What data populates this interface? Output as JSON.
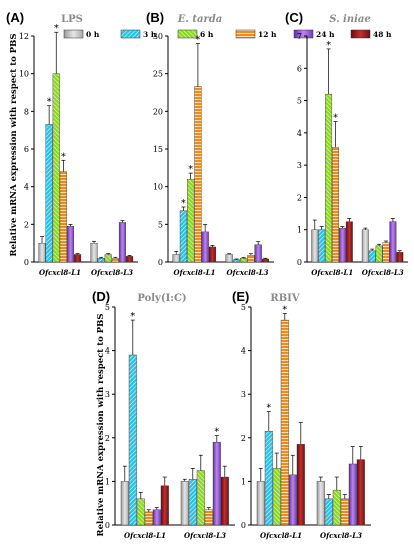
{
  "colors": {
    "0 h": "#bfbfbf",
    "3 h": "#31c3e6",
    "6 h": "#8fd82a",
    "12 h": "#f08a1c",
    "24 h": "#8e3fd8",
    "48 h": "#8b1010"
  },
  "legend": [
    "0 h",
    "3 h",
    "6 h",
    "12 h",
    "24 h",
    "48 h"
  ],
  "ylabel_top": "Relative mRNA expression with respect to PBS",
  "ylabel_bottom": "Relative mRNA expression with respect to PBS",
  "chart_data": [
    {
      "panel": "(A)",
      "title": "LPS",
      "type": "bar",
      "categories": [
        "Ofcxcl8-L1",
        "Ofcxcl8-L3"
      ],
      "ylim": [
        0,
        12
      ],
      "yticks": [
        0,
        2,
        4,
        6,
        8,
        10,
        12
      ],
      "series": [
        {
          "name": "0 h",
          "values": [
            1.0,
            1.0
          ],
          "errors": [
            0.35,
            0.1
          ],
          "sig": [
            false,
            false
          ]
        },
        {
          "name": "3 h",
          "values": [
            7.3,
            0.2
          ],
          "errors": [
            1.0,
            0.05
          ],
          "sig": [
            true,
            false
          ]
        },
        {
          "name": "6 h",
          "values": [
            10.0,
            0.4
          ],
          "errors": [
            2.2,
            0.05
          ],
          "sig": [
            true,
            false
          ]
        },
        {
          "name": "12 h",
          "values": [
            4.8,
            0.2
          ],
          "errors": [
            0.6,
            0.05
          ],
          "sig": [
            true,
            false
          ]
        },
        {
          "name": "24 h",
          "values": [
            1.9,
            2.1
          ],
          "errors": [
            0.1,
            0.1
          ],
          "sig": [
            false,
            false
          ]
        },
        {
          "name": "48 h",
          "values": [
            0.4,
            0.3
          ],
          "errors": [
            0.05,
            0.05
          ],
          "sig": [
            false,
            false
          ]
        }
      ]
    },
    {
      "panel": "(B)",
      "title": "E. tarda",
      "type": "bar",
      "categories": [
        "Ofcxcl8-L1",
        "Ofcxcl8-L3"
      ],
      "ylim": [
        0,
        30
      ],
      "yticks": [
        0,
        5,
        10,
        15,
        20,
        25,
        30
      ],
      "series": [
        {
          "name": "0 h",
          "values": [
            1.0,
            1.0
          ],
          "errors": [
            0.4,
            0.1
          ],
          "sig": [
            false,
            false
          ]
        },
        {
          "name": "3 h",
          "values": [
            6.8,
            0.3
          ],
          "errors": [
            0.5,
            0.1
          ],
          "sig": [
            true,
            false
          ]
        },
        {
          "name": "6 h",
          "values": [
            11.0,
            0.5
          ],
          "errors": [
            0.8,
            0.1
          ],
          "sig": [
            true,
            false
          ]
        },
        {
          "name": "12 h",
          "values": [
            23.3,
            0.9
          ],
          "errors": [
            5.7,
            0.2
          ],
          "sig": [
            true,
            false
          ]
        },
        {
          "name": "24 h",
          "values": [
            4.0,
            2.3
          ],
          "errors": [
            1.0,
            0.4
          ],
          "sig": [
            false,
            false
          ]
        },
        {
          "name": "48 h",
          "values": [
            2.0,
            0.4
          ],
          "errors": [
            0.2,
            0.1
          ],
          "sig": [
            false,
            false
          ]
        }
      ]
    },
    {
      "panel": "(C)",
      "title": "S. iniae",
      "type": "bar",
      "categories": [
        "Ofcxcl8-L1",
        "Ofcxcl8-L3"
      ],
      "ylim": [
        0,
        7
      ],
      "yticks": [
        0,
        1,
        2,
        3,
        4,
        5,
        6,
        7
      ],
      "series": [
        {
          "name": "0 h",
          "values": [
            1.0,
            1.0
          ],
          "errors": [
            0.3,
            0.05
          ],
          "sig": [
            false,
            false
          ]
        },
        {
          "name": "3 h",
          "values": [
            1.0,
            0.35
          ],
          "errors": [
            0.1,
            0.05
          ],
          "sig": [
            false,
            false
          ]
        },
        {
          "name": "6 h",
          "values": [
            5.2,
            0.5
          ],
          "errors": [
            1.4,
            0.05
          ],
          "sig": [
            true,
            false
          ]
        },
        {
          "name": "12 h",
          "values": [
            3.55,
            0.6
          ],
          "errors": [
            0.8,
            0.05
          ],
          "sig": [
            true,
            false
          ]
        },
        {
          "name": "24 h",
          "values": [
            1.05,
            1.25
          ],
          "errors": [
            0.05,
            0.1
          ],
          "sig": [
            false,
            false
          ]
        },
        {
          "name": "48 h",
          "values": [
            1.25,
            0.3
          ],
          "errors": [
            0.1,
            0.05
          ],
          "sig": [
            false,
            false
          ]
        }
      ]
    },
    {
      "panel": "(D)",
      "title": "Poly(I:C)",
      "type": "bar",
      "categories": [
        "Ofcxcl8-L1",
        "Ofcxcl8-L3"
      ],
      "ylim": [
        0,
        5
      ],
      "yticks": [
        0,
        1,
        2,
        3,
        4,
        5
      ],
      "series": [
        {
          "name": "0 h",
          "values": [
            1.0,
            1.0
          ],
          "errors": [
            0.35,
            0.05
          ],
          "sig": [
            false,
            false
          ]
        },
        {
          "name": "3 h",
          "values": [
            3.9,
            1.05
          ],
          "errors": [
            0.8,
            0.25
          ],
          "sig": [
            true,
            false
          ]
        },
        {
          "name": "6 h",
          "values": [
            0.6,
            1.25
          ],
          "errors": [
            0.15,
            0.35
          ],
          "sig": [
            false,
            false
          ]
        },
        {
          "name": "12 h",
          "values": [
            0.3,
            0.35
          ],
          "errors": [
            0.05,
            0.05
          ],
          "sig": [
            false,
            false
          ]
        },
        {
          "name": "24 h",
          "values": [
            0.35,
            1.9
          ],
          "errors": [
            0.05,
            0.15
          ],
          "sig": [
            false,
            true
          ]
        },
        {
          "name": "48 h",
          "values": [
            0.9,
            1.1
          ],
          "errors": [
            0.2,
            0.25
          ],
          "sig": [
            false,
            false
          ]
        }
      ]
    },
    {
      "panel": "(E)",
      "title": "RBIV",
      "type": "bar",
      "categories": [
        "Ofcxcl8-L1",
        "Ofcxcl8-L3"
      ],
      "ylim": [
        0,
        5
      ],
      "yticks": [
        0,
        1,
        2,
        3,
        4,
        5
      ],
      "series": [
        {
          "name": "0 h",
          "values": [
            1.0,
            1.0
          ],
          "errors": [
            0.3,
            0.1
          ],
          "sig": [
            false,
            false
          ]
        },
        {
          "name": "3 h",
          "values": [
            2.15,
            0.6
          ],
          "errors": [
            0.45,
            0.1
          ],
          "sig": [
            true,
            false
          ]
        },
        {
          "name": "6 h",
          "values": [
            1.3,
            0.8
          ],
          "errors": [
            0.35,
            0.3
          ],
          "sig": [
            false,
            false
          ]
        },
        {
          "name": "12 h",
          "values": [
            4.7,
            0.6
          ],
          "errors": [
            0.15,
            0.1
          ],
          "sig": [
            true,
            false
          ]
        },
        {
          "name": "24 h",
          "values": [
            1.15,
            1.4
          ],
          "errors": [
            0.45,
            0.4
          ],
          "sig": [
            false,
            false
          ]
        },
        {
          "name": "48 h",
          "values": [
            1.85,
            1.5
          ],
          "errors": [
            0.5,
            0.3
          ],
          "sig": [
            false,
            false
          ]
        }
      ]
    }
  ]
}
